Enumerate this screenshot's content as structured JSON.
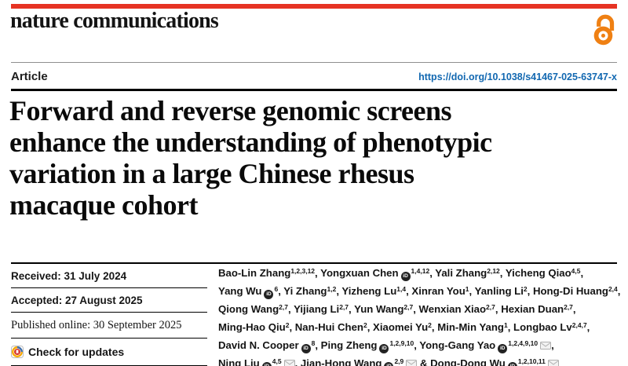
{
  "journal": {
    "name": "nature communications"
  },
  "article": {
    "type_label": "Article",
    "doi": "https://doi.org/10.1038/s41467-025-63747-x",
    "title_lines": [
      "Forward and reverse genomic screens",
      "enhance the understanding of phenotypic",
      "variation in a large Chinese rhesus",
      "macaque cohort"
    ]
  },
  "dates": {
    "received": "Received: 31 July 2024",
    "accepted": "Accepted: 27 August 2025",
    "published": "Published online: 30 September 2025"
  },
  "check_for_updates": {
    "label": "Check for updates"
  },
  "icons": {
    "open_access": "open-padlock",
    "orcid_text": "iD",
    "envelope": "envelope",
    "crossmark": "bookmark-in-circle"
  },
  "colors": {
    "brand_red": "#e63323",
    "doi_blue": "#1268b1",
    "oa_orange": "#ef8013",
    "envelope_gray": "#b0b0b0"
  },
  "authors": {
    "list": [
      {
        "name": "Bao-Lin Zhang",
        "sup": "1,2,3,12",
        "orcid": false,
        "email": false,
        "br": false
      },
      {
        "name": "Yongxuan Chen",
        "sup": "1,4,12",
        "orcid": true,
        "email": false,
        "br": false
      },
      {
        "name": "Yali Zhang",
        "sup": "2,12",
        "orcid": false,
        "email": false,
        "br": false
      },
      {
        "name": "Yicheng Qiao",
        "sup": "4,5",
        "orcid": false,
        "email": false,
        "br": true
      },
      {
        "name": "Yang Wu",
        "sup": "6",
        "orcid": true,
        "email": false,
        "br": false
      },
      {
        "name": "Yi Zhang",
        "sup": "1,2",
        "orcid": false,
        "email": false,
        "br": false
      },
      {
        "name": "Yizheng Lu",
        "sup": "1,4",
        "orcid": false,
        "email": false,
        "br": false
      },
      {
        "name": "Xinran You",
        "sup": "1",
        "orcid": false,
        "email": false,
        "br": false
      },
      {
        "name": "Yanling Li",
        "sup": "2",
        "orcid": false,
        "email": false,
        "br": false
      },
      {
        "name": "Hong-Di Huang",
        "sup": "2,4",
        "orcid": false,
        "email": false,
        "br": true
      },
      {
        "name": "Qiong Wang",
        "sup": "2,7",
        "orcid": false,
        "email": false,
        "br": false
      },
      {
        "name": "Yijiang Li",
        "sup": "2,7",
        "orcid": false,
        "email": false,
        "br": false
      },
      {
        "name": "Yun Wang",
        "sup": "2,7",
        "orcid": false,
        "email": false,
        "br": false
      },
      {
        "name": "Wenxian Xiao",
        "sup": "2,7",
        "orcid": false,
        "email": false,
        "br": false
      },
      {
        "name": "Hexian Duan",
        "sup": "2,7",
        "orcid": false,
        "email": false,
        "br": true
      },
      {
        "name": "Ming-Hao Qiu",
        "sup": "2",
        "orcid": false,
        "email": false,
        "br": false
      },
      {
        "name": "Nan-Hui Chen",
        "sup": "2",
        "orcid": false,
        "email": false,
        "br": false
      },
      {
        "name": "Xiaomei Yu",
        "sup": "2",
        "orcid": false,
        "email": false,
        "br": false
      },
      {
        "name": "Min-Min Yang",
        "sup": "1",
        "orcid": false,
        "email": false,
        "br": false
      },
      {
        "name": "Longbao Lv",
        "sup": "2,4,7",
        "orcid": false,
        "email": false,
        "br": true
      },
      {
        "name": "David N. Cooper",
        "sup": "8",
        "orcid": true,
        "email": false,
        "br": false
      },
      {
        "name": "Ping Zheng",
        "sup": "1,2,9,10",
        "orcid": true,
        "email": false,
        "br": false
      },
      {
        "name": "Yong-Gang Yao",
        "sup": "1,2,4,9,10",
        "orcid": true,
        "email": true,
        "br": true
      },
      {
        "name": "Ning Liu",
        "sup": "4,5",
        "orcid": true,
        "email": true,
        "br": false
      },
      {
        "name": "Jian-Hong Wang",
        "sup": "2,9",
        "orcid": true,
        "email": true,
        "br": false
      },
      {
        "name": "Dong-Dong Wu",
        "sup": "1,2,10,11",
        "orcid": true,
        "email": true,
        "br": false
      }
    ],
    "separator": ", ",
    "ampersand": " & "
  }
}
